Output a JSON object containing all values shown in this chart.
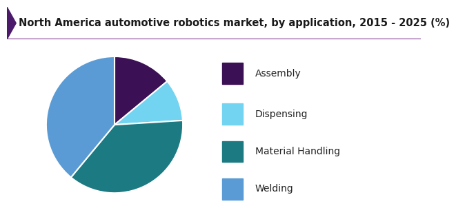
{
  "title": "North America automotive robotics market, by application, 2015 - 2025 (%)",
  "title_color": "#1a1a1a",
  "title_fontsize": 10.5,
  "slices": [
    {
      "label": "Assembly",
      "value": 14,
      "color": "#3b1054"
    },
    {
      "label": "Dispensing",
      "value": 10,
      "color": "#72d4f0"
    },
    {
      "label": "Material Handling",
      "value": 37,
      "color": "#1c7a82"
    },
    {
      "label": "Welding",
      "value": 39,
      "color": "#5b9bd5"
    }
  ],
  "background_color": "#ffffff",
  "header_bg_color": "#f5f5f5",
  "header_left_accent_color": "#4b1a6b",
  "header_bottom_line_color": "#7b2d8b",
  "legend_fontsize": 10,
  "legend_text_color": "#222222",
  "startangle": 90,
  "pie_edge_color": "#ffffff",
  "pie_edge_width": 1.5
}
